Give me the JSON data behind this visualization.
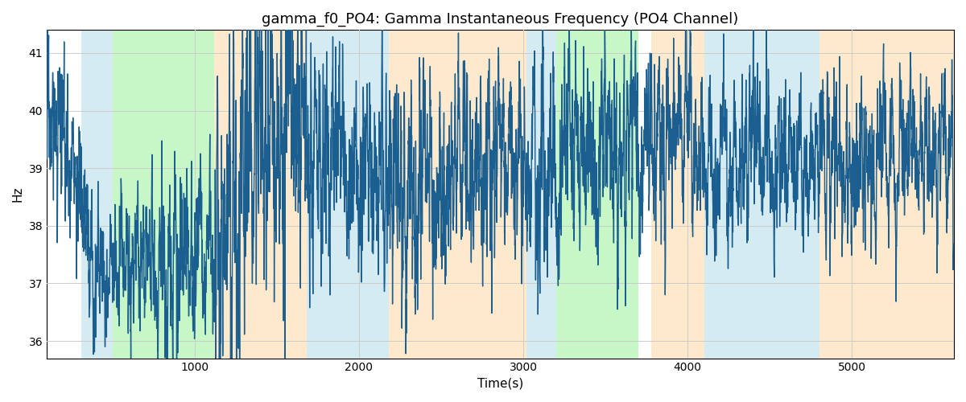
{
  "title": "gamma_f0_PO4: Gamma Instantaneous Frequency (PO4 Channel)",
  "xlabel": "Time(s)",
  "ylabel": "Hz",
  "xlim": [
    100,
    5620
  ],
  "ylim": [
    35.7,
    41.4
  ],
  "yticks": [
    36,
    37,
    38,
    39,
    40,
    41
  ],
  "xticks": [
    1000,
    2000,
    3000,
    4000,
    5000
  ],
  "line_color": "#1a5f8f",
  "line_width": 1.0,
  "grid_color": "#cccccc",
  "background_color": "#ffffff",
  "title_fontsize": 13,
  "colored_bands": [
    {
      "xmin": 310,
      "xmax": 500,
      "color": "#add8e6",
      "alpha": 0.5
    },
    {
      "xmin": 500,
      "xmax": 1120,
      "color": "#90ee90",
      "alpha": 0.5
    },
    {
      "xmin": 1120,
      "xmax": 1680,
      "color": "#ffd59a",
      "alpha": 0.5
    },
    {
      "xmin": 1680,
      "xmax": 1870,
      "color": "#add8e6",
      "alpha": 0.5
    },
    {
      "xmin": 1870,
      "xmax": 2180,
      "color": "#add8e6",
      "alpha": 0.5
    },
    {
      "xmin": 2180,
      "xmax": 3020,
      "color": "#ffd59a",
      "alpha": 0.5
    },
    {
      "xmin": 3020,
      "xmax": 3200,
      "color": "#add8e6",
      "alpha": 0.5
    },
    {
      "xmin": 3200,
      "xmax": 3700,
      "color": "#90ee90",
      "alpha": 0.5
    },
    {
      "xmin": 3700,
      "xmax": 3780,
      "color": "#ffffff",
      "alpha": 1.0
    },
    {
      "xmin": 3780,
      "xmax": 4100,
      "color": "#ffd59a",
      "alpha": 0.5
    },
    {
      "xmin": 4100,
      "xmax": 4800,
      "color": "#add8e6",
      "alpha": 0.5
    },
    {
      "xmin": 4800,
      "xmax": 5620,
      "color": "#ffd59a",
      "alpha": 0.5
    }
  ],
  "seed": 17,
  "t_start": 100,
  "t_end": 5620,
  "dt": 1.0,
  "base_freq": 39.0
}
